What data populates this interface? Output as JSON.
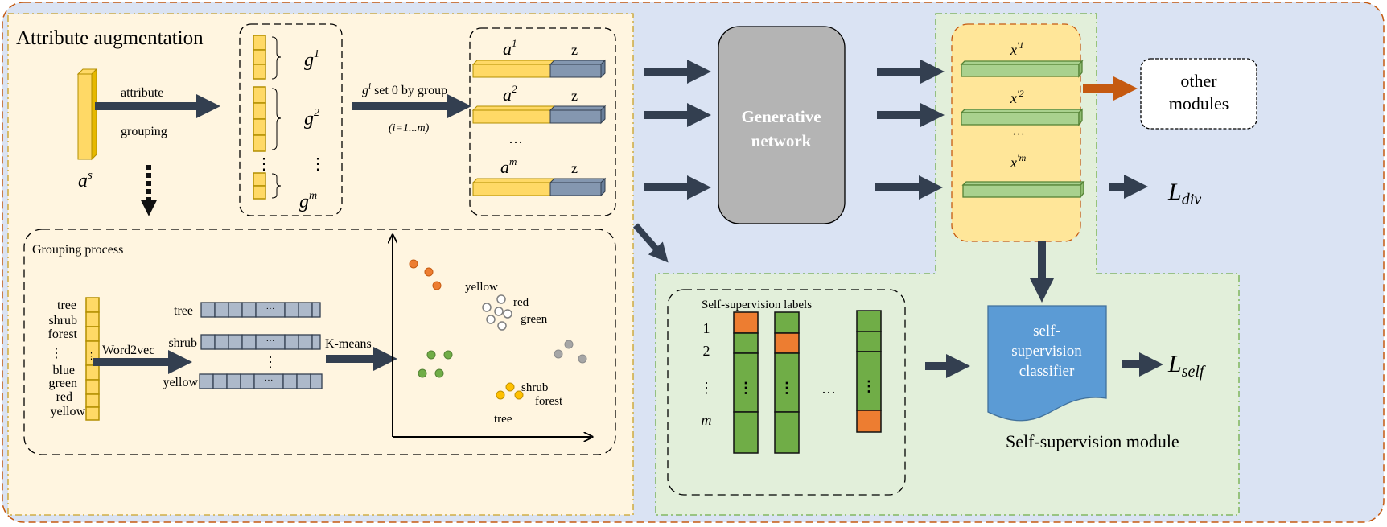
{
  "colors": {
    "outer_bg": "#dae3f3",
    "outer_border": "#c55a11",
    "augment_bg": "#fff5e0",
    "augment_border": "#c9a227",
    "attribute_yellow": "#ffd966",
    "noise_blue": "#8497b0",
    "generator_gray": "#b4b4b4",
    "feature_green": "#a9d18e",
    "output_box_bg": "#ffe699",
    "selfsup_bg": "#e2efda",
    "selfsup_border": "#70ad47",
    "label_green": "#70ad47",
    "label_orange": "#ed7d31",
    "classifier_blue": "#5b9bd5",
    "arrow": "#333f50",
    "orange_arrow": "#c55a11"
  },
  "augmentation": {
    "title": "Attribute augmentation",
    "input_label": "a",
    "input_sup": "s",
    "arrow1_top": "attribute",
    "arrow1_bottom": "grouping",
    "groups": [
      {
        "label": "g",
        "sup": "1"
      },
      {
        "label": "g",
        "sup": "2"
      },
      {
        "label": "g",
        "sup": "m"
      }
    ],
    "group_dots": "⋮",
    "arrow2_label_var": "g",
    "arrow2_label_sup": "i",
    "arrow2_label": " set 0 by group",
    "arrow2_sub": "(i=1...m)",
    "augmented": [
      {
        "label": "a",
        "sup": "1",
        "noise": "z"
      },
      {
        "label": "a",
        "sup": "2",
        "noise": "z"
      },
      {
        "label": "a",
        "sup": "m",
        "noise": "z"
      }
    ],
    "augmented_dots": "···"
  },
  "grouping": {
    "title": "Grouping process",
    "words": [
      "tree",
      "shrub",
      "forest",
      "⋮",
      "blue",
      "green",
      "red",
      "yellow"
    ],
    "word2vec_label": "Word2vec",
    "embeddings": [
      "tree",
      "shrub",
      "yellow"
    ],
    "embedding_cell_dots": "···",
    "embedding_dots": "⋮",
    "kmeans_label": "K-means",
    "cluster_labels": {
      "gray_cluster": [
        "yellow",
        "red",
        "green"
      ],
      "yellow_cluster": [
        "shrub",
        "forest",
        "tree"
      ]
    }
  },
  "generator": {
    "label_line1": "Generative",
    "label_line2": "network"
  },
  "outputs": {
    "features": [
      {
        "label": "x",
        "sup": "'1"
      },
      {
        "label": "x",
        "sup": "'2"
      },
      {
        "label": "x",
        "sup": "'m"
      }
    ],
    "dots": "···",
    "other_modules_line1": "other",
    "other_modules_line2": "modules",
    "loss_div": "L",
    "loss_div_sub": "div"
  },
  "self_supervision": {
    "labels_title": "Self-supervision labels",
    "row_labels": [
      "1",
      "2",
      "⋮",
      "m"
    ],
    "column_dots": "···",
    "cell_dots": "⋮",
    "classifier_line1": "self-",
    "classifier_line2": "supervision",
    "classifier_line3": "classifier",
    "loss_self": "L",
    "loss_self_sub": "self",
    "module_title": "Self-supervision module"
  }
}
